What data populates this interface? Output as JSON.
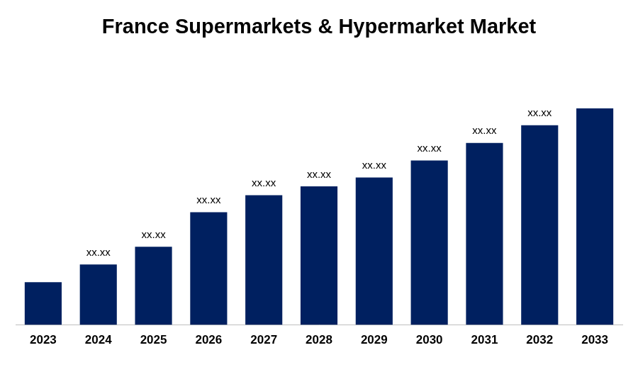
{
  "chart_data": {
    "type": "bar",
    "title": "France Supermarkets & Hypermarket Market",
    "categories": [
      "2023",
      "2024",
      "2025",
      "2026",
      "2027",
      "2028",
      "2029",
      "2030",
      "2031",
      "2032",
      "2033"
    ],
    "values": [
      63,
      89,
      115,
      166,
      191,
      204,
      217,
      242,
      268,
      294,
      319
    ],
    "value_labels": [
      null,
      "xx.xx",
      "xx.xx",
      "xx.xx",
      "xx.xx",
      "xx.xx",
      "xx.xx",
      "xx.xx",
      "xx.xx",
      "xx.xx",
      null
    ],
    "data_labels": true,
    "color": "#002060",
    "ylim": [
      0,
      319
    ],
    "grid": false,
    "tick_labels": "x"
  }
}
